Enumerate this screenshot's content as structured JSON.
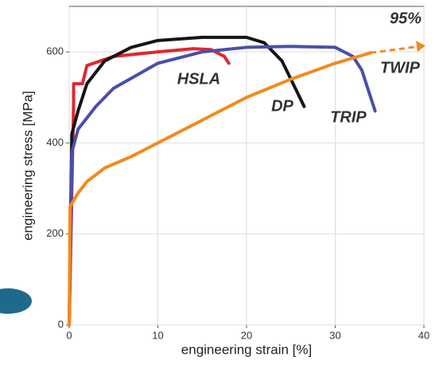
{
  "chart_data": {
    "type": "line",
    "xlabel": "engineering strain [%]",
    "ylabel": "engineering stress [MPa]",
    "xlim": [
      0,
      40
    ],
    "ylim": [
      0,
      700
    ],
    "xticks": [
      0,
      10,
      20,
      30,
      40
    ],
    "yticks": [
      0,
      200,
      400,
      600
    ],
    "grid": true,
    "annotation": "95%",
    "series": [
      {
        "name": "HSLA",
        "color": "#e0262f",
        "x": [
          0,
          0.5,
          0.5,
          1.5,
          2,
          5,
          10,
          14,
          16,
          17.5,
          18
        ],
        "values": [
          0,
          490,
          530,
          530,
          570,
          590,
          600,
          607,
          605,
          590,
          575
        ]
      },
      {
        "name": "DP",
        "color": "#151515",
        "x": [
          0,
          0.3,
          1,
          2,
          4,
          7,
          10,
          15,
          20,
          22,
          24,
          25,
          26.5
        ],
        "values": [
          0,
          420,
          470,
          530,
          580,
          610,
          625,
          632,
          632,
          620,
          580,
          540,
          480
        ]
      },
      {
        "name": "TRIP",
        "color": "#4a4fa8",
        "x": [
          0,
          0.3,
          1,
          3,
          5,
          10,
          15,
          20,
          25,
          30,
          32,
          33,
          34,
          34.5
        ],
        "values": [
          0,
          380,
          430,
          480,
          520,
          575,
          600,
          610,
          612,
          610,
          590,
          560,
          500,
          470
        ]
      },
      {
        "name": "TWIP",
        "color": "#f28a1e",
        "x": [
          0,
          0.1,
          1,
          2,
          4,
          7,
          10,
          15,
          20,
          25,
          30,
          34
        ],
        "values": [
          0,
          260,
          290,
          315,
          345,
          370,
          400,
          450,
          500,
          540,
          575,
          598
        ]
      }
    ]
  }
}
